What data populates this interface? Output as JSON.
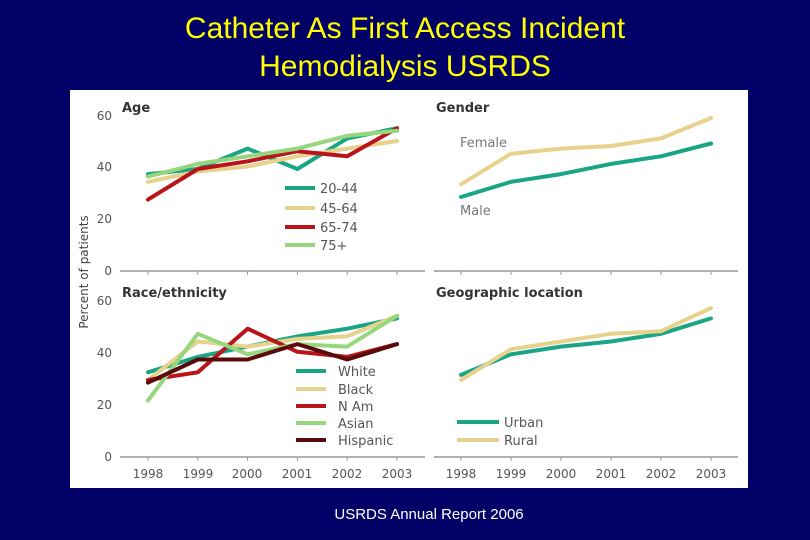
{
  "slide": {
    "title_line1": "Catheter As  First Access Incident",
    "title_line2": "Hemodialysis USRDS",
    "footer": "USRDS Annual Report 2006"
  },
  "colors": {
    "teal": "#1aa585",
    "tan": "#e6d28c",
    "red": "#b91419",
    "lightgreen": "#96d77d",
    "darkbrown": "#5a0a0a",
    "axis": "#999999",
    "panel_title": "#333333"
  },
  "chart_data": [
    {
      "type": "line",
      "panel": "age",
      "title": "Age",
      "ylabel": "Percent of patients",
      "x": [
        1998,
        1999,
        2000,
        2001,
        2002,
        2003
      ],
      "ylim": [
        0,
        60
      ],
      "yticks": [
        "0",
        "20",
        "40",
        "60"
      ],
      "series": [
        {
          "name": "20-44",
          "color": "#1aa585",
          "values": [
            38,
            40,
            48,
            40,
            52,
            56
          ]
        },
        {
          "name": "45-64",
          "color": "#e6d28c",
          "values": [
            35,
            39,
            41,
            45,
            48,
            51
          ]
        },
        {
          "name": "65-74",
          "color": "#b91419",
          "values": [
            28,
            40,
            43,
            47,
            45,
            56
          ]
        },
        {
          "name": "75+",
          "color": "#96d77d",
          "values": [
            37,
            42,
            45,
            48,
            53,
            55
          ]
        }
      ]
    },
    {
      "type": "line",
      "panel": "gender",
      "title": "Gender",
      "x": [
        1998,
        1999,
        2000,
        2001,
        2002,
        2003
      ],
      "ylim": [
        0,
        60
      ],
      "series": [
        {
          "name": "Female",
          "color": "#e6d28c",
          "values": [
            34,
            46,
            48,
            49,
            52,
            60
          ]
        },
        {
          "name": "Male",
          "color": "#1aa585",
          "values": [
            29,
            35,
            38,
            42,
            45,
            50
          ]
        }
      ]
    },
    {
      "type": "line",
      "panel": "race",
      "title": "Race/ethnicity",
      "x": [
        1998,
        1999,
        2000,
        2001,
        2002,
        2003
      ],
      "xticks": [
        "1998",
        "1999",
        "2000",
        "2001",
        "2002",
        "2003"
      ],
      "ylim": [
        0,
        60
      ],
      "yticks": [
        "0",
        "20",
        "40",
        "60"
      ],
      "series": [
        {
          "name": "White",
          "color": "#1aa585",
          "values": [
            33,
            39,
            43,
            47,
            50,
            54
          ]
        },
        {
          "name": "Black",
          "color": "#e6d28c",
          "values": [
            30,
            45,
            43,
            46,
            47,
            55
          ]
        },
        {
          "name": "N Am",
          "color": "#b91419",
          "values": [
            30,
            33,
            50,
            41,
            39,
            44
          ]
        },
        {
          "name": "Asian",
          "color": "#96d77d",
          "values": [
            22,
            48,
            40,
            44,
            43,
            55
          ]
        },
        {
          "name": "Hispanic",
          "color": "#5a0a0a",
          "values": [
            29,
            38,
            38,
            44,
            38,
            44
          ]
        }
      ]
    },
    {
      "type": "line",
      "panel": "geo",
      "title": "Geographic location",
      "x": [
        1998,
        1999,
        2000,
        2001,
        2002,
        2003
      ],
      "xticks": [
        "1998",
        "1999",
        "2000",
        "2001",
        "2002",
        "2003"
      ],
      "ylim": [
        0,
        60
      ],
      "series": [
        {
          "name": "Urban",
          "color": "#1aa585",
          "values": [
            32,
            40,
            43,
            45,
            48,
            54
          ]
        },
        {
          "name": "Rural",
          "color": "#e6d28c",
          "values": [
            30,
            42,
            45,
            48,
            49,
            58
          ]
        }
      ]
    }
  ]
}
